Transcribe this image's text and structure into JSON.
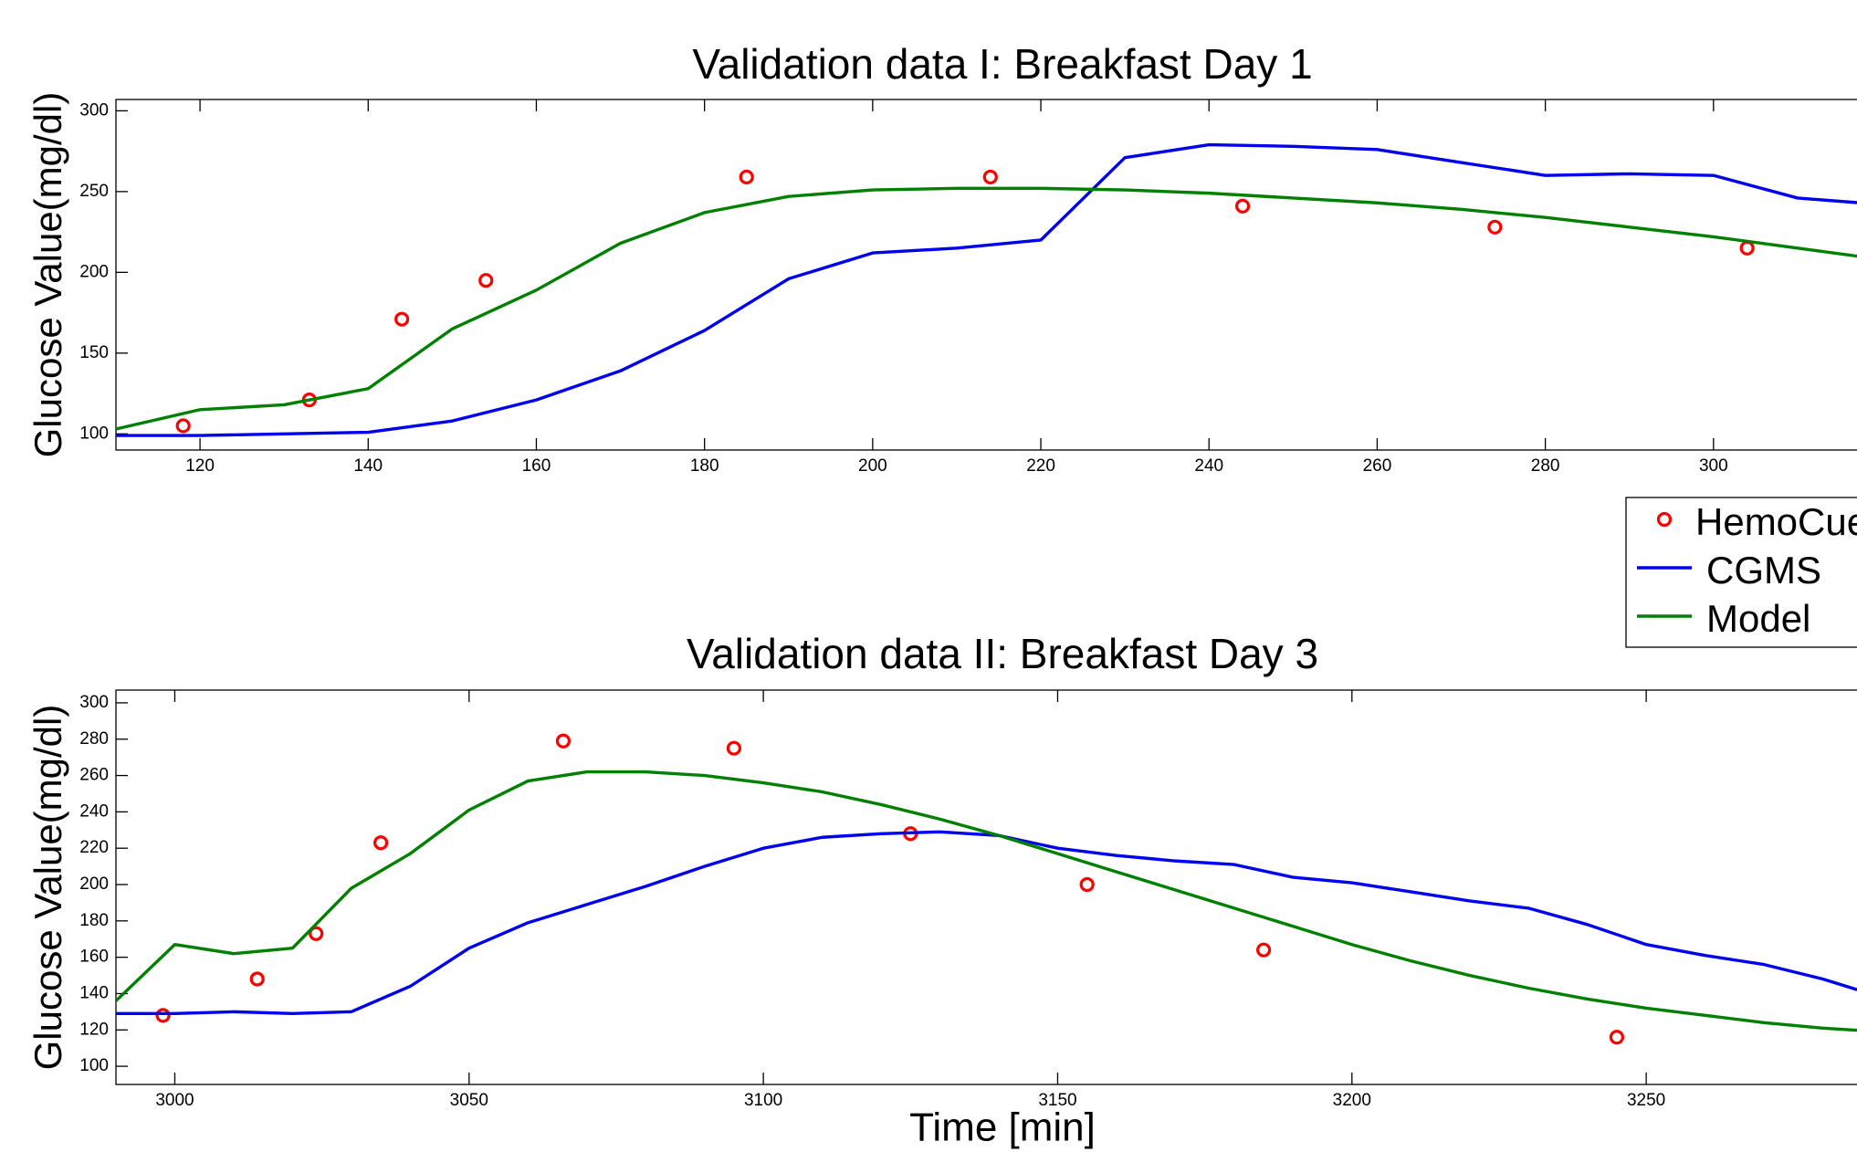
{
  "chart_data": [
    {
      "type": "line",
      "title": "Validation data I: Breakfast Day 1",
      "y_label": "Glucose Value(mg/dl)",
      "xlim": [
        110,
        320
      ],
      "xticks": [
        120,
        140,
        160,
        180,
        200,
        220,
        240,
        260,
        280,
        300
      ],
      "ylim": [
        90,
        307
      ],
      "yticks": [
        100,
        150,
        200,
        250,
        300
      ],
      "legend": "right",
      "series": [
        {
          "name": "HemoCue",
          "color": "#ff0000",
          "style": "markers",
          "x": [
            118,
            133,
            144,
            154,
            185,
            214,
            244,
            274,
            304
          ],
          "values": [
            105,
            121,
            171,
            195,
            259,
            259,
            241,
            228,
            215
          ]
        },
        {
          "name": "CGMS",
          "color": "#0000ee",
          "style": "line",
          "x": [
            110,
            120,
            130,
            140,
            150,
            160,
            170,
            180,
            190,
            200,
            210,
            220,
            230,
            240,
            250,
            260,
            270,
            280,
            290,
            300,
            310,
            320
          ],
          "values": [
            99,
            99,
            100,
            101,
            108,
            121,
            139,
            164,
            196,
            212,
            215,
            220,
            271,
            279,
            278,
            276,
            268,
            260,
            261,
            260,
            246,
            242
          ]
        },
        {
          "name": "Model",
          "color": "#008000",
          "style": "line",
          "x": [
            110,
            120,
            130,
            140,
            150,
            160,
            170,
            180,
            190,
            200,
            210,
            220,
            230,
            240,
            250,
            260,
            270,
            280,
            290,
            300,
            310,
            320
          ],
          "values": [
            103,
            115,
            118,
            128,
            165,
            189,
            218,
            237,
            247,
            251,
            252,
            252,
            251,
            249,
            246,
            243,
            239,
            234,
            228,
            222,
            215,
            208
          ]
        }
      ]
    },
    {
      "type": "line",
      "title": "Validation data II: Breakfast Day 3",
      "y_label": "Glucose Value(mg/dl)",
      "x_label": "Time [min]",
      "xlim": [
        2990,
        3290
      ],
      "xticks": [
        3000,
        3050,
        3100,
        3150,
        3200,
        3250
      ],
      "ylim": [
        90,
        307
      ],
      "yticks": [
        100,
        120,
        140,
        160,
        180,
        200,
        220,
        240,
        260,
        280,
        300
      ],
      "series": [
        {
          "name": "HemoCue",
          "color": "#ff0000",
          "style": "markers",
          "x": [
            2998,
            3014,
            3024,
            3035,
            3066,
            3095,
            3125,
            3155,
            3185,
            3245
          ],
          "values": [
            128,
            148,
            173,
            223,
            279,
            275,
            228,
            200,
            164,
            116
          ]
        },
        {
          "name": "CGMS",
          "color": "#0000ee",
          "style": "line",
          "x": [
            2990,
            3000,
            3010,
            3020,
            3030,
            3040,
            3050,
            3060,
            3070,
            3080,
            3090,
            3100,
            3110,
            3120,
            3130,
            3140,
            3150,
            3160,
            3170,
            3180,
            3190,
            3200,
            3210,
            3220,
            3230,
            3240,
            3250,
            3260,
            3270,
            3280,
            3290
          ],
          "values": [
            129,
            129,
            130,
            129,
            130,
            144,
            165,
            179,
            189,
            199,
            210,
            220,
            226,
            228,
            229,
            227,
            220,
            216,
            213,
            211,
            204,
            201,
            196,
            191,
            187,
            178,
            167,
            161,
            156,
            148,
            138
          ]
        },
        {
          "name": "Model",
          "color": "#008000",
          "style": "line",
          "x": [
            2990,
            3000,
            3010,
            3020,
            3030,
            3040,
            3050,
            3060,
            3070,
            3080,
            3090,
            3100,
            3110,
            3120,
            3130,
            3140,
            3150,
            3160,
            3170,
            3180,
            3190,
            3200,
            3210,
            3220,
            3230,
            3240,
            3250,
            3260,
            3270,
            3280,
            3290
          ],
          "values": [
            136,
            167,
            162,
            165,
            198,
            217,
            241,
            257,
            262,
            262,
            260,
            256,
            251,
            244,
            236,
            227,
            217,
            207,
            197,
            187,
            177,
            167,
            158,
            150,
            143,
            137,
            132,
            128,
            124,
            121,
            119
          ]
        }
      ]
    }
  ]
}
